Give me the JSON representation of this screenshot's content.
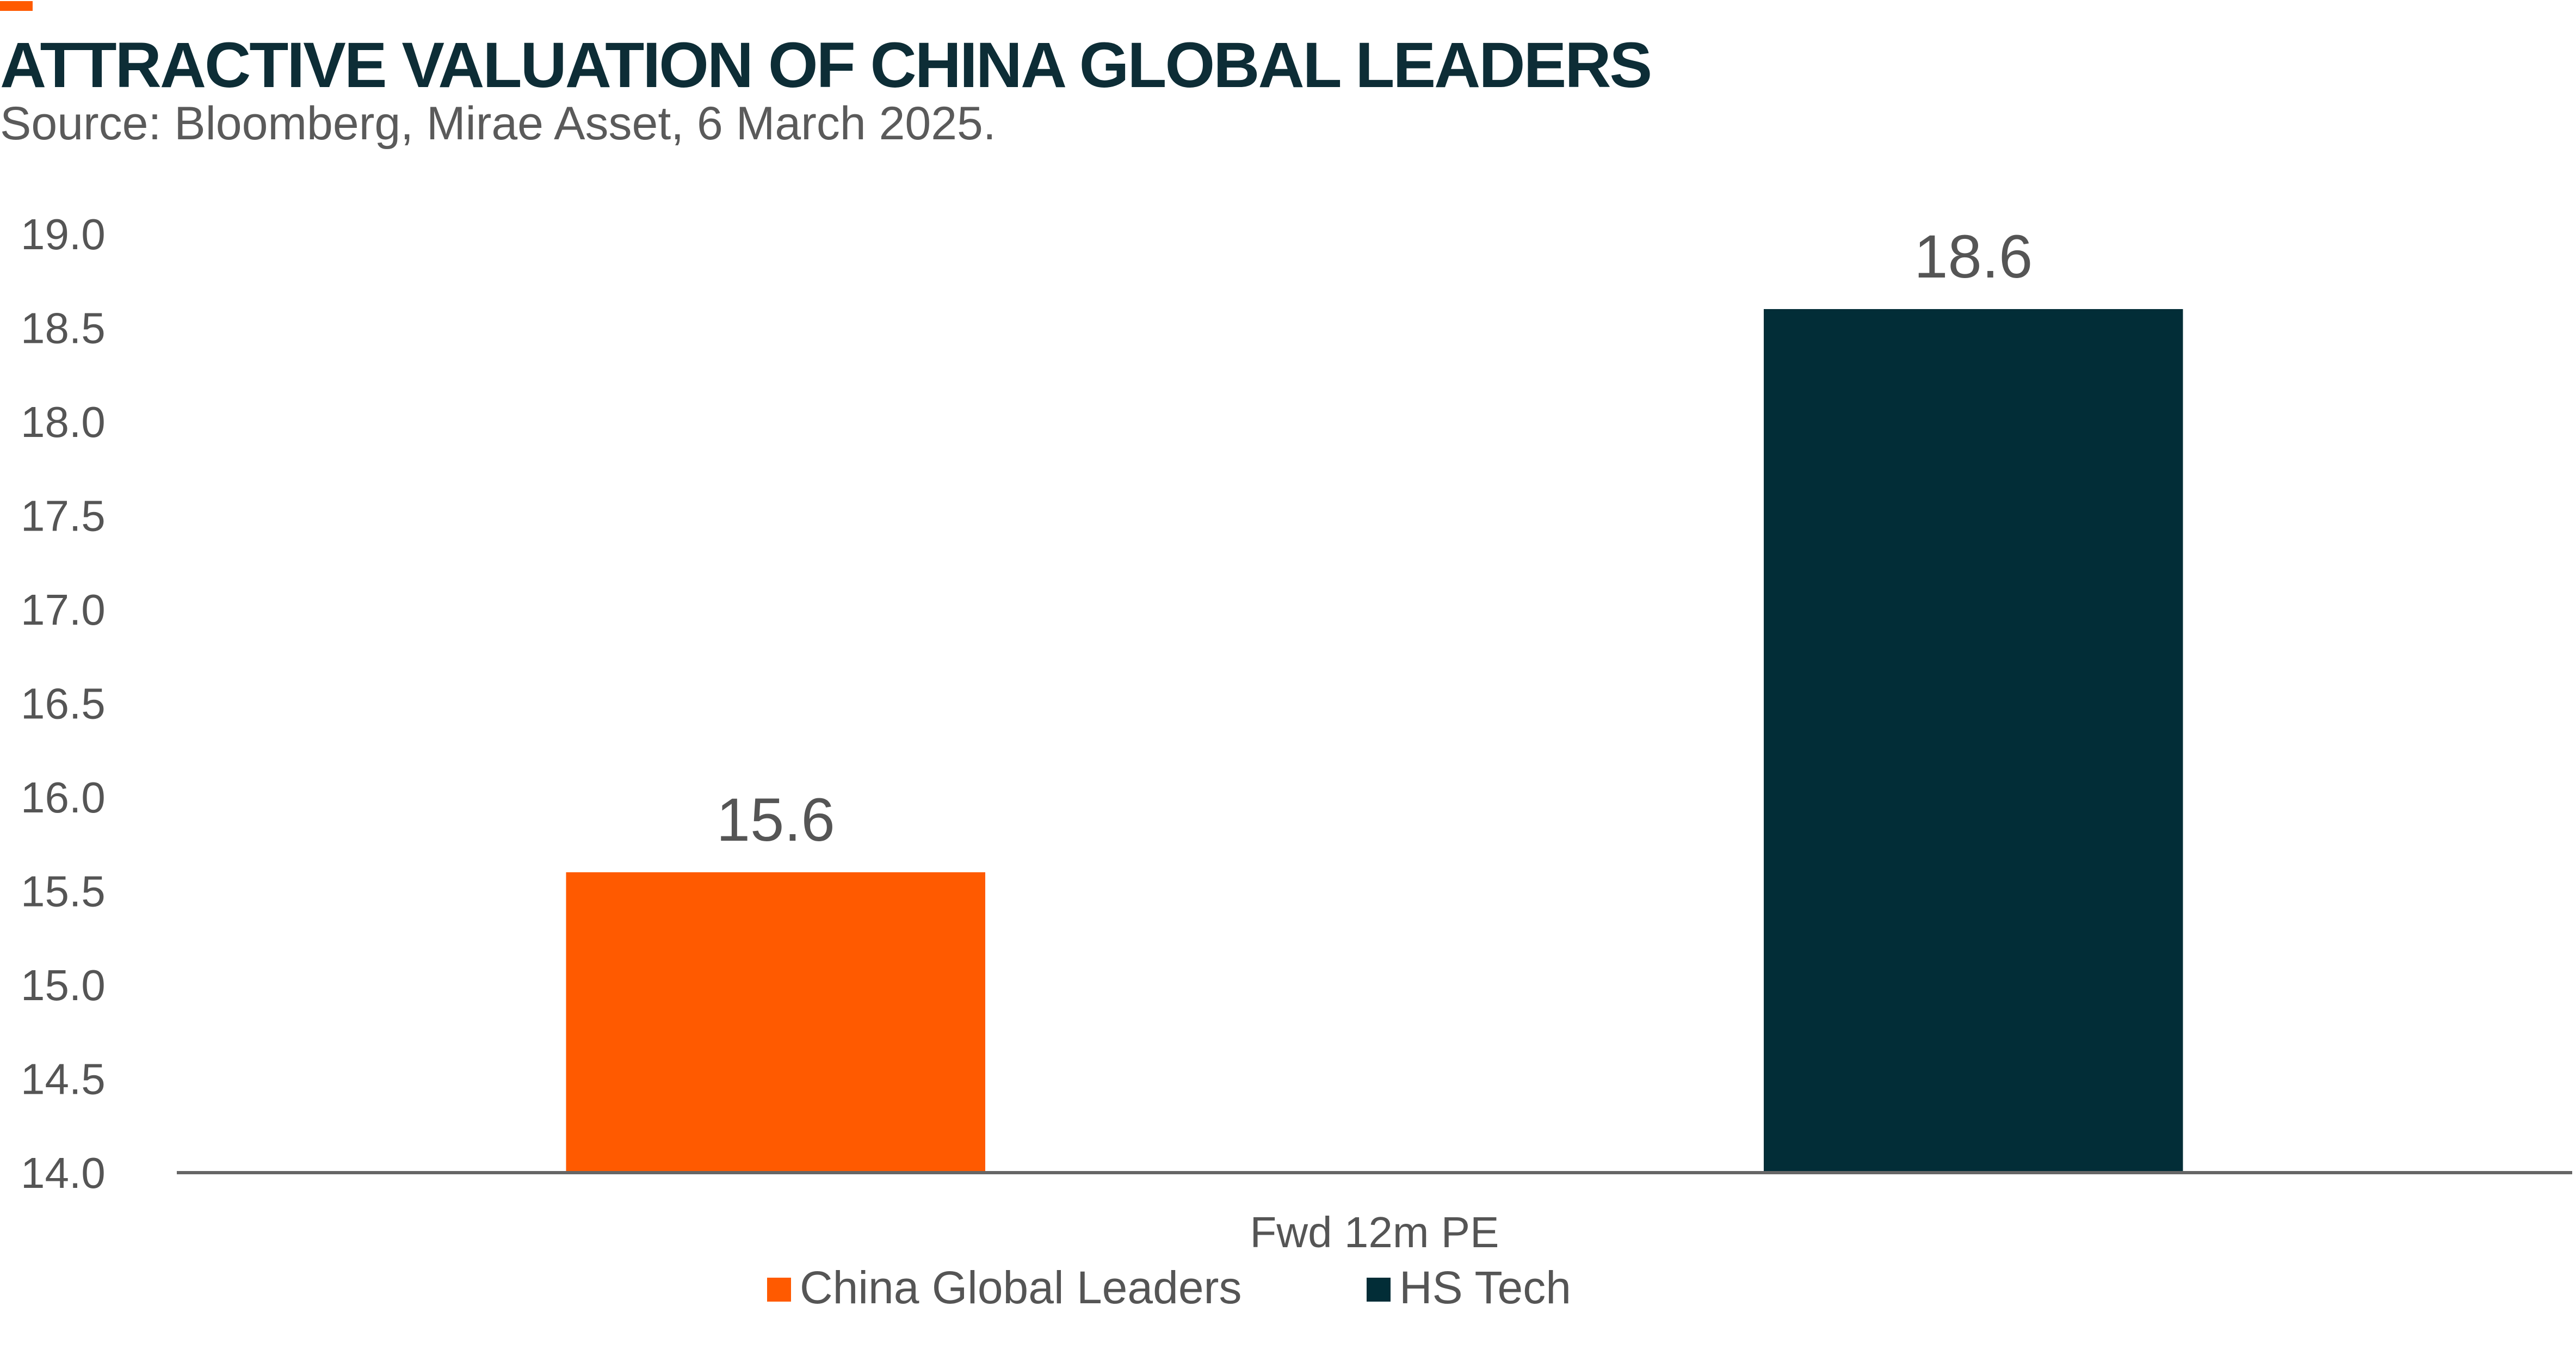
{
  "title": "ATTRACTIVE VALUATION OF CHINA GLOBAL LEADERS",
  "subtitle": "Source: Bloomberg, Mirae Asset, 6 March 2025.",
  "colors": {
    "title": "#0d2d36",
    "accent": "#ff5a00",
    "axis": "#666666",
    "text": "#555555"
  },
  "chart_data": {
    "type": "bar",
    "categories": [
      "Fwd 12m PE"
    ],
    "series": [
      {
        "name": "China Global Leaders",
        "values": [
          15.6
        ],
        "color": "#ff5a00"
      },
      {
        "name": "HS Tech",
        "values": [
          18.6
        ],
        "color": "#022d37"
      }
    ],
    "ylim": [
      14.0,
      19.0
    ],
    "yticks": [
      "14.0",
      "14.5",
      "15.0",
      "15.5",
      "16.0",
      "16.5",
      "17.0",
      "17.5",
      "18.0",
      "18.5",
      "19.0"
    ],
    "data_labels": [
      "15.6",
      "18.6"
    ],
    "grid": false,
    "legend_position": "bottom",
    "xlabel": "",
    "ylabel": ""
  }
}
